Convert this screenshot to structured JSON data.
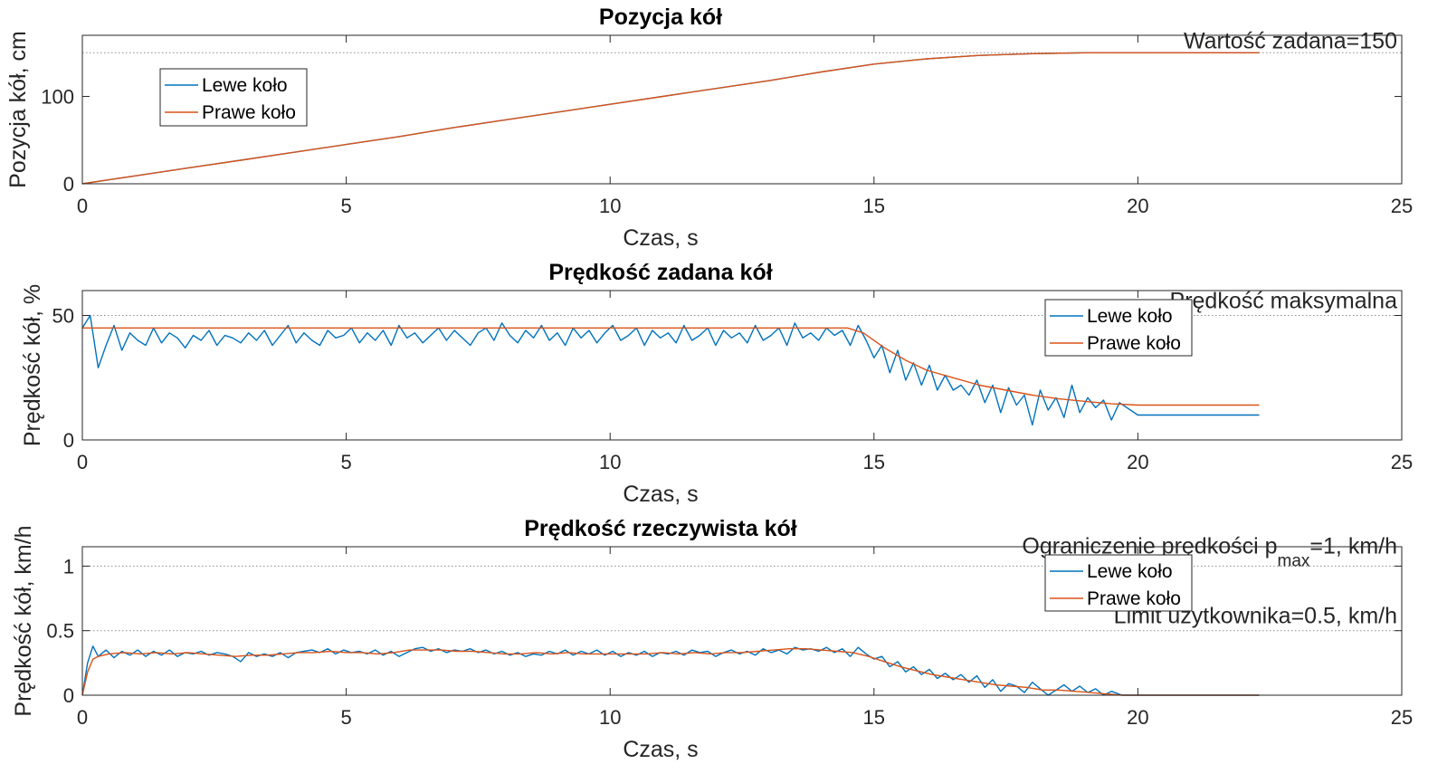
{
  "chart_data": [
    {
      "type": "line",
      "title": "Pozycja kół",
      "xlabel": "Czas, s",
      "ylabel": "Pozycja kół, cm",
      "xlim": [
        0,
        25
      ],
      "ylim": [
        0,
        170
      ],
      "xticks": [
        0,
        5,
        10,
        15,
        20,
        25
      ],
      "yticks": [
        0,
        100
      ],
      "grid": false,
      "legend_position": "top-left",
      "reference_lines": [
        {
          "y": 150,
          "label": "Wartość zadana=150"
        }
      ],
      "series": [
        {
          "name": "Lewe koło",
          "color": "#0072BD",
          "x": [
            0,
            1,
            2,
            3,
            4,
            5,
            6,
            7,
            8,
            9,
            10,
            11,
            12,
            13,
            14,
            15,
            16,
            17,
            18,
            19,
            20,
            21,
            22.3
          ],
          "y": [
            0,
            9,
            18,
            27,
            36,
            45,
            54,
            64,
            73,
            82,
            91,
            100,
            109,
            118,
            128,
            137,
            143,
            147,
            149,
            150,
            150,
            150,
            150
          ]
        },
        {
          "name": "Prawe koło",
          "color": "#D95319",
          "x": [
            0,
            1,
            2,
            3,
            4,
            5,
            6,
            7,
            8,
            9,
            10,
            11,
            12,
            13,
            14,
            15,
            16,
            17,
            18,
            19,
            20,
            21,
            22.3
          ],
          "y": [
            0,
            9,
            18,
            27,
            36,
            45,
            54,
            64,
            73,
            82,
            91,
            100,
            109,
            118,
            128,
            137,
            143,
            147,
            149,
            150,
            150,
            150,
            150
          ]
        }
      ]
    },
    {
      "type": "line",
      "title": "Prędkość zadana kół",
      "xlabel": "Czas, s",
      "ylabel": "Prędkość kół, %",
      "xlim": [
        0,
        25
      ],
      "ylim": [
        0,
        60
      ],
      "xticks": [
        0,
        5,
        10,
        15,
        20,
        25
      ],
      "yticks": [
        0,
        50
      ],
      "grid": false,
      "legend_position": "top-right",
      "reference_lines": [
        {
          "y": 50,
          "label": "Prędkość maksymalna"
        }
      ],
      "series": [
        {
          "name": "Lewe koło",
          "color": "#0072BD",
          "x": [
            0,
            0.15,
            0.3,
            0.45,
            0.6,
            0.75,
            0.9,
            1.05,
            1.2,
            1.35,
            1.5,
            1.65,
            1.8,
            1.95,
            2.1,
            2.25,
            2.4,
            2.55,
            2.7,
            2.85,
            3.0,
            3.15,
            3.3,
            3.45,
            3.6,
            3.75,
            3.9,
            4.05,
            4.2,
            4.35,
            4.5,
            4.65,
            4.8,
            4.95,
            5.1,
            5.25,
            5.4,
            5.55,
            5.7,
            5.85,
            6.0,
            6.15,
            6.3,
            6.45,
            6.6,
            6.75,
            6.9,
            7.05,
            7.2,
            7.35,
            7.5,
            7.65,
            7.8,
            7.95,
            8.1,
            8.25,
            8.4,
            8.55,
            8.7,
            8.85,
            9.0,
            9.15,
            9.3,
            9.45,
            9.6,
            9.75,
            9.9,
            10.05,
            10.2,
            10.35,
            10.5,
            10.65,
            10.8,
            10.95,
            11.1,
            11.25,
            11.4,
            11.55,
            11.7,
            11.85,
            12.0,
            12.15,
            12.3,
            12.45,
            12.6,
            12.75,
            12.9,
            13.05,
            13.2,
            13.35,
            13.5,
            13.65,
            13.8,
            13.95,
            14.1,
            14.25,
            14.4,
            14.55,
            14.7,
            14.85,
            15.0,
            15.15,
            15.3,
            15.45,
            15.6,
            15.75,
            15.9,
            16.05,
            16.2,
            16.35,
            16.5,
            16.65,
            16.8,
            16.95,
            17.1,
            17.25,
            17.4,
            17.55,
            17.7,
            17.85,
            18.0,
            18.15,
            18.3,
            18.45,
            18.6,
            18.75,
            18.9,
            19.05,
            19.2,
            19.35,
            19.5,
            19.65,
            20,
            21,
            22.3
          ],
          "y": [
            45,
            50,
            29,
            38,
            46,
            36,
            43,
            40,
            38,
            45,
            39,
            43,
            41,
            37,
            42,
            40,
            44,
            38,
            42,
            41,
            39,
            43,
            40,
            44,
            38,
            42,
            46,
            39,
            43,
            40,
            38,
            44,
            41,
            42,
            45,
            39,
            43,
            40,
            44,
            38,
            46,
            41,
            43,
            39,
            42,
            45,
            40,
            44,
            41,
            38,
            43,
            45,
            40,
            47,
            42,
            39,
            44,
            41,
            46,
            40,
            43,
            38,
            45,
            41,
            44,
            39,
            43,
            46,
            40,
            42,
            45,
            38,
            44,
            41,
            43,
            39,
            46,
            40,
            42,
            45,
            38,
            44,
            41,
            43,
            39,
            46,
            40,
            42,
            45,
            38,
            47,
            41,
            43,
            40,
            45,
            42,
            44,
            38,
            46,
            40,
            33,
            38,
            27,
            36,
            24,
            31,
            22,
            30,
            20,
            26,
            20,
            22,
            18,
            24,
            15,
            22,
            11,
            21,
            14,
            18,
            6,
            20,
            12,
            17,
            9,
            22,
            11,
            17,
            13,
            16,
            8,
            15,
            10,
            10,
            10
          ]
        },
        {
          "name": "Prawe koło",
          "color": "#D95319",
          "x": [
            0,
            14.5,
            14.8,
            15.2,
            15.6,
            16.0,
            16.5,
            17.0,
            17.5,
            18.0,
            18.5,
            19.0,
            19.5,
            20,
            21,
            22.3
          ],
          "y": [
            45,
            45,
            43,
            37,
            32,
            28,
            25,
            22,
            20,
            18,
            16.5,
            15.5,
            14.5,
            14,
            14,
            14
          ]
        }
      ]
    },
    {
      "type": "line",
      "title": "Prędkość rzeczywista kół",
      "xlabel": "Czas, s",
      "ylabel": "Prędkość kół, km/h",
      "xlim": [
        0,
        25
      ],
      "ylim": [
        0,
        1.15
      ],
      "xticks": [
        0,
        5,
        10,
        15,
        20,
        25
      ],
      "yticks": [
        0,
        0.5,
        1
      ],
      "grid": false,
      "legend_position": "top-right",
      "reference_lines": [
        {
          "y": 1,
          "label": "Ograniczenie prędkości p",
          "label_sub": "max",
          "label_after": "=1, km/h"
        },
        {
          "y": 0.5,
          "label": "Limit użytkownika=0.5, km/h"
        }
      ],
      "series": [
        {
          "name": "Lewe koło",
          "color": "#0072BD",
          "x": [
            0,
            0.1,
            0.2,
            0.3,
            0.45,
            0.6,
            0.75,
            0.9,
            1.05,
            1.2,
            1.35,
            1.5,
            1.65,
            1.8,
            1.95,
            2.1,
            2.25,
            2.4,
            2.55,
            2.7,
            2.85,
            3.0,
            3.15,
            3.3,
            3.45,
            3.6,
            3.75,
            3.9,
            4.05,
            4.2,
            4.35,
            4.5,
            4.65,
            4.8,
            4.95,
            5.1,
            5.25,
            5.4,
            5.55,
            5.7,
            5.85,
            6.0,
            6.15,
            6.3,
            6.45,
            6.6,
            6.75,
            6.9,
            7.05,
            7.2,
            7.35,
            7.5,
            7.65,
            7.8,
            7.95,
            8.1,
            8.25,
            8.4,
            8.55,
            8.7,
            8.85,
            9.0,
            9.15,
            9.3,
            9.45,
            9.6,
            9.75,
            9.9,
            10.05,
            10.2,
            10.35,
            10.5,
            10.65,
            10.8,
            10.95,
            11.1,
            11.25,
            11.4,
            11.55,
            11.7,
            11.85,
            12.0,
            12.15,
            12.3,
            12.45,
            12.6,
            12.75,
            12.9,
            13.05,
            13.2,
            13.35,
            13.5,
            13.65,
            13.8,
            13.95,
            14.1,
            14.25,
            14.4,
            14.55,
            14.7,
            14.85,
            15.0,
            15.15,
            15.3,
            15.45,
            15.6,
            15.75,
            15.9,
            16.05,
            16.2,
            16.35,
            16.5,
            16.65,
            16.8,
            16.95,
            17.1,
            17.25,
            17.4,
            17.55,
            17.7,
            17.85,
            18.0,
            18.15,
            18.3,
            18.45,
            18.6,
            18.75,
            18.9,
            19.05,
            19.2,
            19.35,
            19.5,
            19.7,
            20,
            21,
            22.3
          ],
          "y": [
            0,
            0.25,
            0.38,
            0.3,
            0.35,
            0.29,
            0.34,
            0.31,
            0.35,
            0.3,
            0.34,
            0.31,
            0.35,
            0.3,
            0.33,
            0.32,
            0.34,
            0.31,
            0.33,
            0.32,
            0.3,
            0.26,
            0.33,
            0.3,
            0.32,
            0.3,
            0.33,
            0.29,
            0.33,
            0.34,
            0.35,
            0.33,
            0.36,
            0.32,
            0.35,
            0.33,
            0.34,
            0.32,
            0.35,
            0.31,
            0.34,
            0.3,
            0.33,
            0.36,
            0.37,
            0.34,
            0.36,
            0.33,
            0.35,
            0.34,
            0.36,
            0.33,
            0.35,
            0.32,
            0.34,
            0.31,
            0.33,
            0.3,
            0.32,
            0.31,
            0.34,
            0.32,
            0.35,
            0.31,
            0.34,
            0.32,
            0.35,
            0.31,
            0.34,
            0.3,
            0.33,
            0.31,
            0.34,
            0.3,
            0.33,
            0.32,
            0.34,
            0.31,
            0.35,
            0.33,
            0.34,
            0.3,
            0.33,
            0.35,
            0.32,
            0.34,
            0.31,
            0.36,
            0.33,
            0.35,
            0.32,
            0.37,
            0.35,
            0.36,
            0.34,
            0.37,
            0.33,
            0.36,
            0.3,
            0.37,
            0.32,
            0.28,
            0.3,
            0.22,
            0.26,
            0.18,
            0.22,
            0.16,
            0.2,
            0.13,
            0.17,
            0.12,
            0.16,
            0.1,
            0.15,
            0.06,
            0.12,
            0.03,
            0.09,
            0.07,
            0.02,
            0.1,
            0.05,
            0.0,
            0.04,
            0.08,
            0.03,
            0.07,
            0.02,
            0.05,
            0.0,
            0.03,
            0.0,
            0.0,
            0.0,
            0.0
          ]
        },
        {
          "name": "Prawe koło",
          "color": "#D95319",
          "x": [
            0,
            0.1,
            0.2,
            0.3,
            0.5,
            0.8,
            1.1,
            1.4,
            1.7,
            2.0,
            2.3,
            2.6,
            2.9,
            3.2,
            3.5,
            3.8,
            4.1,
            4.4,
            4.7,
            5.0,
            5.3,
            5.6,
            5.9,
            6.2,
            6.5,
            6.8,
            7.1,
            7.4,
            7.7,
            8.0,
            8.3,
            8.6,
            8.9,
            9.2,
            9.5,
            9.8,
            10.1,
            10.4,
            10.7,
            11.0,
            11.3,
            11.6,
            11.9,
            12.2,
            12.5,
            12.8,
            13.1,
            13.4,
            13.7,
            14.0,
            14.3,
            14.6,
            14.9,
            15.2,
            15.5,
            15.8,
            16.1,
            16.4,
            16.7,
            17.0,
            17.3,
            17.6,
            17.9,
            18.2,
            18.5,
            18.8,
            19.1,
            19.4,
            19.7,
            20,
            21,
            22.3
          ],
          "y": [
            0,
            0.18,
            0.28,
            0.3,
            0.32,
            0.33,
            0.32,
            0.33,
            0.32,
            0.33,
            0.32,
            0.31,
            0.3,
            0.31,
            0.31,
            0.32,
            0.33,
            0.33,
            0.34,
            0.33,
            0.33,
            0.32,
            0.33,
            0.35,
            0.35,
            0.35,
            0.34,
            0.34,
            0.33,
            0.32,
            0.32,
            0.33,
            0.32,
            0.33,
            0.32,
            0.32,
            0.32,
            0.32,
            0.32,
            0.33,
            0.32,
            0.33,
            0.32,
            0.33,
            0.33,
            0.34,
            0.35,
            0.36,
            0.36,
            0.35,
            0.34,
            0.33,
            0.3,
            0.26,
            0.22,
            0.19,
            0.16,
            0.14,
            0.12,
            0.1,
            0.08,
            0.07,
            0.06,
            0.04,
            0.04,
            0.03,
            0.02,
            0.01,
            0.0,
            0.0,
            0.0,
            0.0
          ]
        }
      ]
    }
  ]
}
